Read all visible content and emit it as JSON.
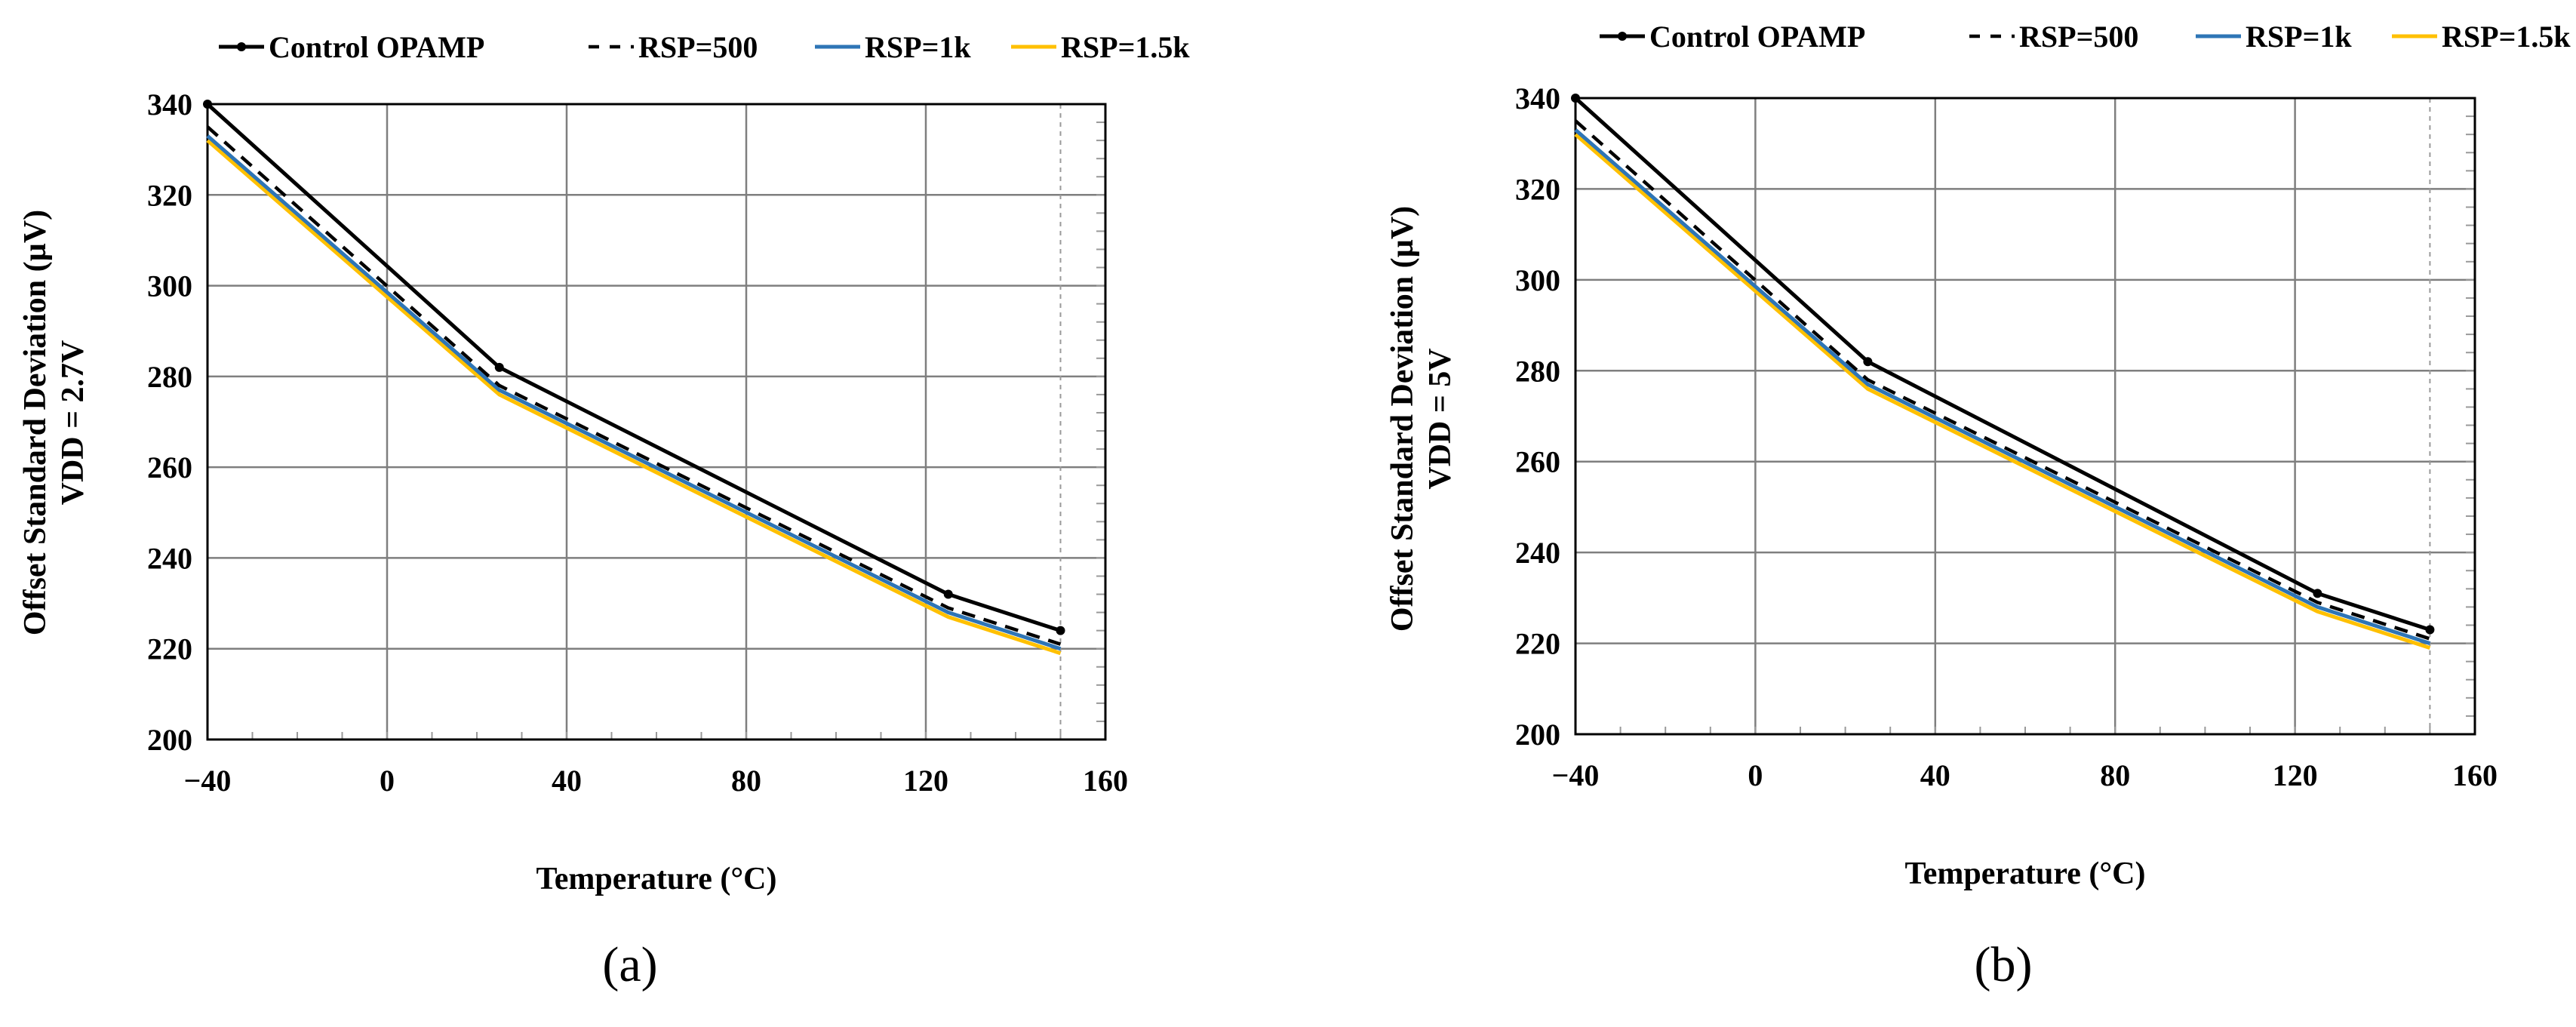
{
  "chart_data": [
    {
      "type": "line",
      "panel_label": "(a)",
      "title": "",
      "xlabel": "Temperature (°C)",
      "ylabel_line1": "Offset Standard Deviation (µV)",
      "ylabel_line2": "VDD = 2.7V",
      "xlim": [
        -40,
        160
      ],
      "ylim": [
        200,
        340
      ],
      "x_ticks": [
        -40,
        0,
        40,
        80,
        120,
        160
      ],
      "x_tick_labels": [
        "−40",
        "0",
        "40",
        "80",
        "120",
        "160"
      ],
      "y_ticks": [
        200,
        220,
        240,
        260,
        280,
        300,
        320,
        340
      ],
      "y_tick_labels": [
        "200",
        "220",
        "240",
        "260",
        "280",
        "300",
        "320",
        "340"
      ],
      "grid": true,
      "legend_position": "top",
      "series": [
        {
          "name": "Control OPAMP",
          "legend_label": "Control OPAMP",
          "color": "#000000",
          "dash": "solid",
          "markers": true,
          "x": [
            -40,
            25,
            125,
            150
          ],
          "y": [
            340,
            282,
            232,
            224
          ]
        },
        {
          "name": "RSP=500",
          "legend_label": "RSP=500",
          "color": "#000000",
          "dash": "dashed",
          "markers": false,
          "x": [
            -40,
            25,
            125,
            150
          ],
          "y": [
            335,
            278,
            229,
            221
          ]
        },
        {
          "name": "RSP=1k",
          "legend_label": "RSP=1k",
          "color": "#2e75b6",
          "dash": "solid",
          "markers": false,
          "x": [
            -40,
            25,
            125,
            150
          ],
          "y": [
            333,
            277,
            228,
            220
          ]
        },
        {
          "name": "RSP=1.5k",
          "legend_label": "RSP=1.5k",
          "color": "#ffc000",
          "dash": "solid",
          "markers": false,
          "x": [
            -40,
            25,
            125,
            150
          ],
          "y": [
            332,
            276,
            227,
            219
          ]
        }
      ]
    },
    {
      "type": "line",
      "panel_label": "(b)",
      "title": "",
      "xlabel": "Temperature (°C)",
      "ylabel_line1": "Offset Standard Deviation (µV)",
      "ylabel_line2": "VDD = 5V",
      "xlim": [
        -40,
        160
      ],
      "ylim": [
        200,
        340
      ],
      "x_ticks": [
        -40,
        0,
        40,
        80,
        120,
        160
      ],
      "x_tick_labels": [
        "−40",
        "0",
        "40",
        "80",
        "120",
        "160"
      ],
      "y_ticks": [
        200,
        220,
        240,
        260,
        280,
        300,
        320,
        340
      ],
      "y_tick_labels": [
        "200",
        "220",
        "240",
        "260",
        "280",
        "300",
        "320",
        "340"
      ],
      "grid": true,
      "legend_position": "top",
      "series": [
        {
          "name": "Control OPAMP",
          "legend_label": "Control OPAMP",
          "color": "#000000",
          "dash": "solid",
          "markers": true,
          "x": [
            -40,
            25,
            125,
            150
          ],
          "y": [
            340,
            282,
            231,
            223
          ]
        },
        {
          "name": "RSP=500",
          "legend_label": "RSP=500",
          "color": "#000000",
          "dash": "dashed",
          "markers": false,
          "x": [
            -40,
            25,
            125,
            150
          ],
          "y": [
            335,
            278,
            229,
            221
          ]
        },
        {
          "name": "RSP=1k",
          "legend_label": "RSP=1k",
          "color": "#2e75b6",
          "dash": "solid",
          "markers": false,
          "x": [
            -40,
            25,
            125,
            150
          ],
          "y": [
            333,
            277,
            228,
            220
          ]
        },
        {
          "name": "RSP=1.5k",
          "legend_label": "RSP=1.5k",
          "color": "#ffc000",
          "dash": "solid",
          "markers": false,
          "x": [
            -40,
            25,
            125,
            150
          ],
          "y": [
            332,
            276,
            227,
            219
          ]
        }
      ]
    }
  ]
}
